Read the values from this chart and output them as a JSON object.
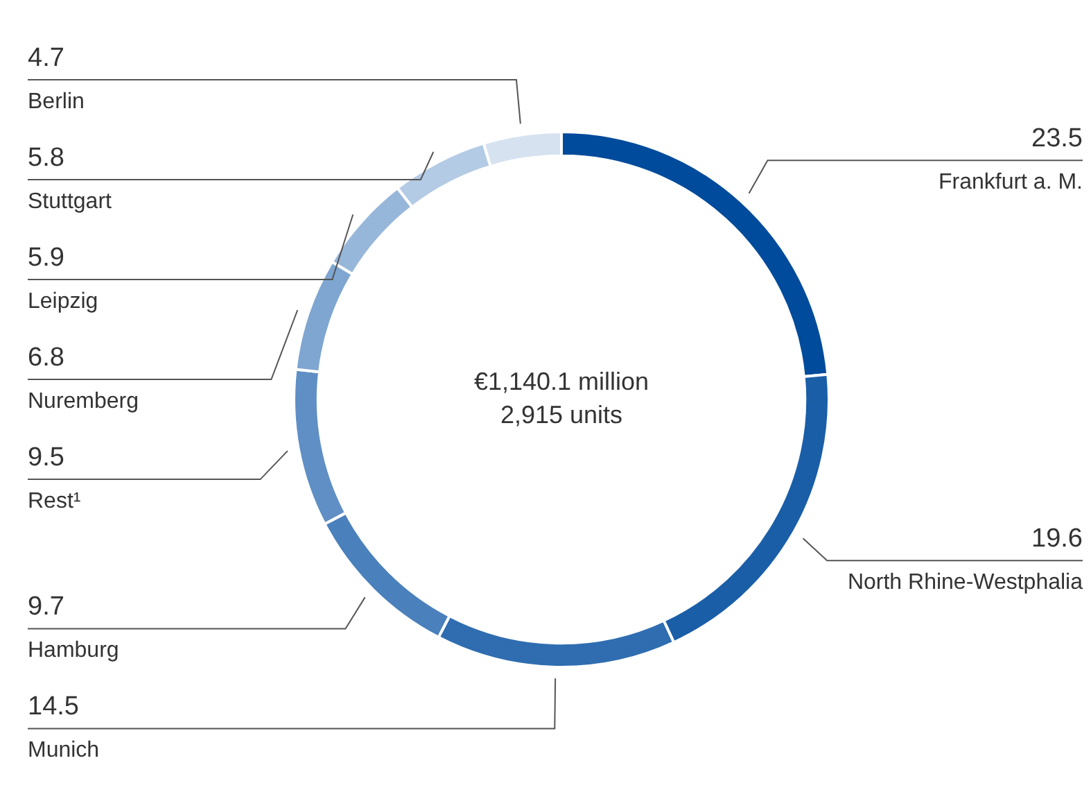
{
  "chart_data": {
    "type": "donut",
    "categories": [
      "Frankfurt a. M.",
      "North Rhine-Westphalia",
      "Munich",
      "Hamburg",
      "Rest¹",
      "Nuremberg",
      "Leipzig",
      "Stuttgart",
      "Berlin"
    ],
    "values": [
      23.5,
      19.6,
      14.5,
      9.7,
      9.5,
      6.8,
      5.9,
      5.8,
      4.7
    ],
    "colors": [
      "#004b9b",
      "#1a5ea8",
      "#2f6db0",
      "#4a80bb",
      "#5f8fc4",
      "#7ea6d0",
      "#97b7da",
      "#b3cbe4",
      "#d6e2f0"
    ],
    "annotations": [
      "€1,140.1 million",
      "2,915 units"
    ],
    "data_labels": true
  }
}
